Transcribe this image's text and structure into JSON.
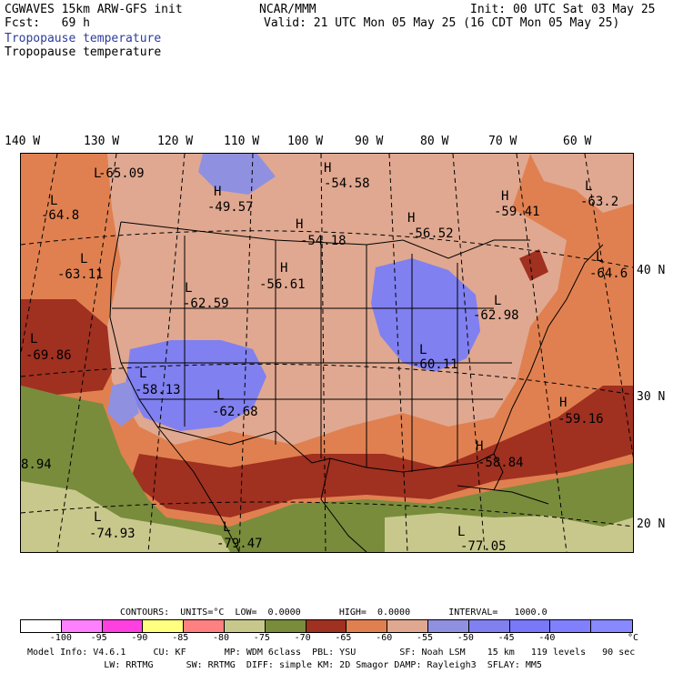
{
  "header": {
    "model_line": "CGWAVES 15km ARW-GFS init",
    "fcst_line": "Fcst:   69 h",
    "field_title_colored": "Tropopause temperature",
    "field_title_black": "Tropopause temperature",
    "center_title": "NCAR/MMM",
    "init_line": "Init: 00 UTC Sat 03 May 25",
    "valid_line": "Valid: 21 UTC Mon 05 May 25 (16 CDT Mon 05 May 25)"
  },
  "axes": {
    "longitudes": [
      "140 W",
      "130 W",
      "120 W",
      "110 W",
      "100 W",
      "90 W",
      "80 W",
      "70 W",
      "60 W"
    ],
    "latitudes": [
      "40 N",
      "30 N",
      "20 N"
    ]
  },
  "map_labels": [
    {
      "type": "L",
      "value": "-65.09"
    },
    {
      "type": "L",
      "value": "-64.8"
    },
    {
      "type": "H",
      "value": "-49.57"
    },
    {
      "type": "H",
      "value": "-54.58"
    },
    {
      "type": "H",
      "value": "-54.18"
    },
    {
      "type": "H",
      "value": "-56.52"
    },
    {
      "type": "H",
      "value": "-59.41"
    },
    {
      "type": "L",
      "value": "-63.2"
    },
    {
      "type": "L",
      "value": "-63.11"
    },
    {
      "type": "H",
      "value": "-56.61"
    },
    {
      "type": "L",
      "value": "-62.59"
    },
    {
      "type": "L",
      "value": "-64.6"
    },
    {
      "type": "L",
      "value": "-69.86"
    },
    {
      "type": "L",
      "value": "-62.98"
    },
    {
      "type": "L",
      "value": "-60.11"
    },
    {
      "type": "L",
      "value": "-58.13"
    },
    {
      "type": "L",
      "value": "-62.68"
    },
    {
      "type": "H",
      "value": "-59.16"
    },
    {
      "type": "",
      "value": "8.94"
    },
    {
      "type": "H",
      "value": "-58.84"
    },
    {
      "type": "L",
      "value": "-74.93"
    },
    {
      "type": "L",
      "value": "-79.47"
    },
    {
      "type": "L",
      "value": "-77.05"
    }
  ],
  "contour_line": "CONTOURS:  UNITS=°C  LOW=  0.0000       HIGH=  0.0000       INTERVAL=   1000.0",
  "colorbar": {
    "colors": [
      "#ffffff",
      "#ff80ff",
      "#ff40e0",
      "#ffff80",
      "#ff8080",
      "#c8c88c",
      "#788c3c",
      "#a03020",
      "#e08050",
      "#e0a890",
      "#9090e0",
      "#8080f0"
    ],
    "ticks": [
      "-100",
      "-95",
      "-90",
      "-85",
      "-80",
      "-75",
      "-70",
      "-65",
      "-60",
      "-55",
      "-50",
      "-45",
      "-40"
    ],
    "unit": "°C"
  },
  "footer": {
    "line1": "Model Info: V4.6.1     CU: KF       MP: WDM 6class  PBL: YSU        SF: Noah LSM    15 km   119 levels   90 sec",
    "line2": "              LW: RRTMG      SW: RRTMG  DIFF: simple KM: 2D Smagor DAMP: Rayleigh3  SFLAY: MM5"
  },
  "field_colors": {
    "warm": "#e08050",
    "mid": "#e0a890",
    "cold_blue": "#8080f0",
    "dark_red": "#a03020",
    "olive": "#788c3c",
    "khaki": "#c8c88c"
  }
}
